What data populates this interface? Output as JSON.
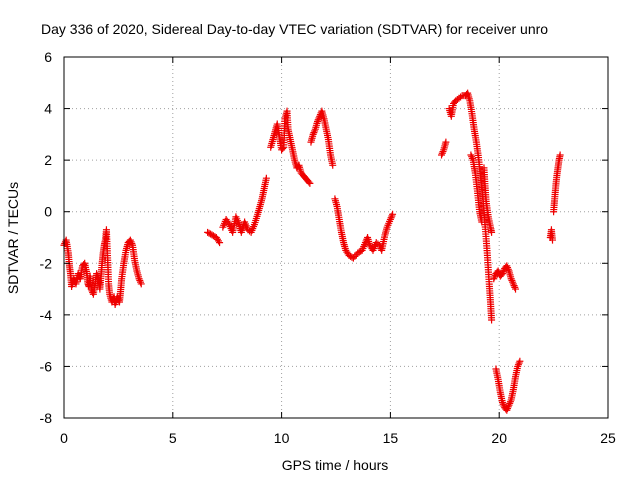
{
  "chart_data": {
    "type": "scatter",
    "title": "Day 336 of 2020, Sidereal Day-to-day VTEC variation (SDTVAR) for receiver unro",
    "xlabel": "GPS time / hours",
    "ylabel": "SDTVAR / TECUs",
    "xlim": [
      0,
      25
    ],
    "ylim": [
      -8,
      6
    ],
    "xticks": [
      0,
      5,
      10,
      15,
      20,
      25
    ],
    "yticks": [
      -8,
      -6,
      -4,
      -2,
      0,
      2,
      4,
      6
    ],
    "xtick_labels": [
      "0",
      "5",
      "10",
      "15",
      "20",
      "25"
    ],
    "ytick_labels": [
      "-8",
      "-6",
      "-4",
      "-2",
      "0",
      "2",
      "4",
      "6"
    ],
    "grid": true,
    "marker": "+",
    "color": "#ee0000",
    "series": [
      {
        "name": "SDTVAR",
        "segments": [
          [
            [
              0.0,
              -1.3
            ],
            [
              0.1,
              -1.1
            ],
            [
              0.2,
              -1.6
            ],
            [
              0.25,
              -2.1
            ],
            [
              0.3,
              -2.4
            ],
            [
              0.35,
              -2.9
            ],
            [
              0.45,
              -2.6
            ],
            [
              0.55,
              -2.8
            ],
            [
              0.65,
              -2.4
            ],
            [
              0.75,
              -2.6
            ],
            [
              0.85,
              -2.1
            ],
            [
              0.95,
              -2.0
            ],
            [
              1.05,
              -2.4
            ],
            [
              1.1,
              -2.8
            ],
            [
              1.15,
              -2.9
            ],
            [
              1.2,
              -2.5
            ],
            [
              1.25,
              -3.0
            ],
            [
              1.35,
              -3.2
            ],
            [
              1.45,
              -2.7
            ],
            [
              1.5,
              -2.4
            ],
            [
              1.6,
              -2.7
            ],
            [
              1.65,
              -3.0
            ],
            [
              1.7,
              -2.5
            ],
            [
              1.75,
              -2.0
            ],
            [
              1.8,
              -1.6
            ],
            [
              1.85,
              -1.3
            ],
            [
              1.9,
              -1.1
            ],
            [
              1.95,
              -0.7
            ],
            [
              2.0,
              -1.7
            ],
            [
              2.05,
              -2.8
            ],
            [
              2.1,
              -3.2
            ],
            [
              2.2,
              -3.5
            ],
            [
              2.3,
              -3.3
            ],
            [
              2.35,
              -3.6
            ],
            [
              2.45,
              -3.3
            ],
            [
              2.55,
              -3.5
            ],
            [
              2.6,
              -3.1
            ],
            [
              2.65,
              -2.6
            ],
            [
              2.75,
              -2.0
            ],
            [
              2.85,
              -1.5
            ],
            [
              2.95,
              -1.2
            ],
            [
              3.05,
              -1.1
            ],
            [
              3.15,
              -1.3
            ],
            [
              3.25,
              -1.9
            ],
            [
              3.35,
              -2.3
            ],
            [
              3.45,
              -2.6
            ],
            [
              3.55,
              -2.8
            ]
          ],
          [
            [
              6.6,
              -0.8
            ],
            [
              6.8,
              -0.9
            ],
            [
              7.0,
              -1.0
            ],
            [
              7.15,
              -1.2
            ]
          ],
          [
            [
              7.3,
              -0.6
            ],
            [
              7.45,
              -0.3
            ],
            [
              7.6,
              -0.5
            ],
            [
              7.75,
              -0.8
            ],
            [
              7.9,
              -0.2
            ],
            [
              8.05,
              -0.5
            ],
            [
              8.15,
              -0.8
            ],
            [
              8.3,
              -0.4
            ],
            [
              8.45,
              -0.7
            ],
            [
              8.6,
              -0.8
            ],
            [
              8.75,
              -0.5
            ],
            [
              8.9,
              -0.1
            ],
            [
              9.0,
              0.2
            ],
            [
              9.1,
              0.5
            ],
            [
              9.2,
              0.9
            ],
            [
              9.3,
              1.3
            ]
          ],
          [
            [
              9.5,
              2.5
            ],
            [
              9.6,
              2.8
            ],
            [
              9.7,
              3.1
            ],
            [
              9.8,
              3.4
            ],
            [
              9.9,
              2.9
            ],
            [
              10.0,
              2.4
            ],
            [
              10.1,
              2.5
            ],
            [
              10.15,
              3.6
            ],
            [
              10.25,
              3.9
            ],
            [
              10.3,
              3.2
            ],
            [
              10.4,
              2.8
            ],
            [
              10.5,
              2.4
            ],
            [
              10.6,
              2.0
            ],
            [
              10.7,
              1.7
            ],
            [
              10.8,
              1.8
            ],
            [
              10.9,
              1.5
            ],
            [
              11.0,
              1.4
            ],
            [
              11.1,
              1.3
            ],
            [
              11.2,
              1.2
            ],
            [
              11.3,
              1.1
            ]
          ],
          [
            [
              11.35,
              2.7
            ],
            [
              11.45,
              3.0
            ],
            [
              11.55,
              3.2
            ],
            [
              11.65,
              3.5
            ],
            [
              11.75,
              3.7
            ],
            [
              11.85,
              3.9
            ],
            [
              11.95,
              3.6
            ],
            [
              12.05,
              3.2
            ],
            [
              12.15,
              2.8
            ],
            [
              12.25,
              2.2
            ],
            [
              12.35,
              1.8
            ]
          ],
          [
            [
              12.45,
              0.5
            ],
            [
              12.55,
              0.2
            ],
            [
              12.65,
              -0.3
            ],
            [
              12.75,
              -0.8
            ],
            [
              12.85,
              -1.2
            ],
            [
              12.95,
              -1.5
            ],
            [
              13.1,
              -1.7
            ],
            [
              13.3,
              -1.8
            ],
            [
              13.5,
              -1.6
            ],
            [
              13.7,
              -1.5
            ],
            [
              13.85,
              -1.2
            ],
            [
              13.95,
              -1.0
            ],
            [
              14.05,
              -1.3
            ],
            [
              14.2,
              -1.5
            ],
            [
              14.35,
              -1.2
            ],
            [
              14.5,
              -1.3
            ],
            [
              14.6,
              -1.5
            ],
            [
              14.75,
              -0.9
            ],
            [
              14.85,
              -0.6
            ],
            [
              15.0,
              -0.3
            ],
            [
              15.1,
              -0.1
            ]
          ],
          [
            [
              17.35,
              2.2
            ],
            [
              17.45,
              2.4
            ],
            [
              17.55,
              2.7
            ]
          ],
          [
            [
              17.7,
              4.0
            ],
            [
              17.8,
              3.7
            ],
            [
              17.9,
              4.2
            ],
            [
              18.0,
              4.3
            ],
            [
              18.15,
              4.4
            ],
            [
              18.3,
              4.5
            ],
            [
              18.45,
              4.5
            ],
            [
              18.55,
              4.6
            ],
            [
              18.65,
              4.3
            ],
            [
              18.75,
              3.8
            ],
            [
              18.85,
              3.2
            ],
            [
              18.95,
              2.7
            ],
            [
              19.05,
              2.1
            ],
            [
              19.15,
              1.3
            ],
            [
              19.25,
              0.5
            ],
            [
              19.35,
              -0.5
            ],
            [
              19.45,
              -1.6
            ],
            [
              19.55,
              -2.9
            ],
            [
              19.6,
              -3.5
            ],
            [
              19.65,
              -4.2
            ]
          ],
          [
            [
              18.7,
              2.2
            ],
            [
              18.8,
              2.0
            ],
            [
              18.9,
              1.5
            ],
            [
              19.0,
              0.8
            ],
            [
              19.1,
              0.0
            ],
            [
              19.2,
              -0.4
            ]
          ],
          [
            [
              19.3,
              1.7
            ],
            [
              19.35,
              1.0
            ],
            [
              19.4,
              0.4
            ],
            [
              19.5,
              -0.2
            ],
            [
              19.6,
              -0.6
            ],
            [
              19.65,
              -0.8
            ]
          ],
          [
            [
              19.75,
              -2.6
            ],
            [
              19.85,
              -2.4
            ],
            [
              19.95,
              -2.3
            ],
            [
              20.05,
              -2.5
            ],
            [
              20.15,
              -2.4
            ],
            [
              20.25,
              -2.2
            ],
            [
              20.35,
              -2.1
            ],
            [
              20.45,
              -2.3
            ],
            [
              20.55,
              -2.6
            ],
            [
              20.65,
              -2.8
            ],
            [
              20.75,
              -3.0
            ]
          ],
          [
            [
              19.85,
              -6.1
            ],
            [
              19.95,
              -6.5
            ],
            [
              20.05,
              -7.0
            ],
            [
              20.15,
              -7.4
            ],
            [
              20.25,
              -7.6
            ],
            [
              20.35,
              -7.7
            ],
            [
              20.45,
              -7.5
            ],
            [
              20.55,
              -7.3
            ],
            [
              20.65,
              -6.9
            ],
            [
              20.75,
              -6.4
            ],
            [
              20.85,
              -6.0
            ],
            [
              20.95,
              -5.8
            ]
          ],
          [
            [
              22.35,
              -1.0
            ],
            [
              22.4,
              -0.7
            ],
            [
              22.45,
              -1.1
            ]
          ],
          [
            [
              22.5,
              0.0
            ],
            [
              22.55,
              0.5
            ],
            [
              22.6,
              1.0
            ],
            [
              22.65,
              1.4
            ],
            [
              22.7,
              1.7
            ],
            [
              22.75,
              2.0
            ],
            [
              22.8,
              2.2
            ]
          ]
        ]
      }
    ]
  }
}
